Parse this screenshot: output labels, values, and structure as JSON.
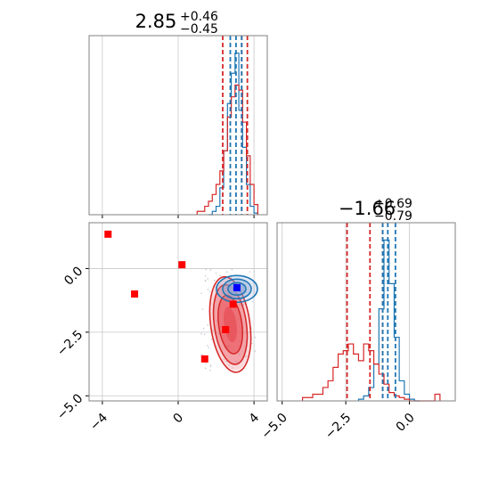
{
  "colors": {
    "blue": "#1f77b4",
    "red": "#d62728",
    "marker_red": "#ff0000",
    "marker_blue": "#0000ff",
    "fill_red": "#e8525a",
    "frame": "#808080",
    "grid": "#c8c8c8"
  },
  "chart_data": [
    {
      "type": "histogram",
      "panel": "marginal-param-1",
      "title_main": "2.85",
      "title_plus": "+0.46",
      "title_minus": "−0.45",
      "xlim": [
        -4.7,
        4.7
      ],
      "grid": true,
      "quantile_lines": {
        "red": [
          2.35,
          3.35,
          3.65
        ],
        "blue": [
          2.75,
          3.05,
          3.35
        ]
      },
      "series": [
        {
          "color": "blue",
          "bin_edges": [
            1.6,
            1.8,
            2.0,
            2.2,
            2.4,
            2.6,
            2.8,
            3.0,
            3.2,
            3.4,
            3.6,
            3.8,
            4.0,
            4.2
          ],
          "counts": [
            0,
            0.02,
            0.05,
            0.16,
            0.38,
            0.66,
            0.84,
            0.96,
            0.62,
            0.4,
            0.18,
            0.05,
            0.01
          ]
        },
        {
          "color": "red",
          "bin_edges": [
            1.0,
            1.4,
            1.6,
            1.8,
            2.0,
            2.2,
            2.4,
            2.6,
            2.8,
            3.0,
            3.2,
            3.4,
            3.6,
            3.8,
            4.0,
            4.2
          ],
          "counts": [
            0.02,
            0.05,
            0.08,
            0.12,
            0.18,
            0.26,
            0.38,
            0.58,
            0.7,
            0.77,
            0.74,
            0.55,
            0.35,
            0.18,
            0.06
          ]
        }
      ]
    },
    {
      "type": "scatter",
      "panel": "joint-density",
      "xlim": [
        -4.7,
        4.7
      ],
      "ylim": [
        -5.2,
        1.8
      ],
      "x_ticks": [
        "−4",
        "0",
        "4"
      ],
      "y_ticks": [
        "−5.0",
        "−2.5",
        "0.0"
      ],
      "grid": true,
      "points_red": [
        [
          -3.7,
          1.35
        ],
        [
          -2.3,
          -1.0
        ],
        [
          0.2,
          0.15
        ],
        [
          2.9,
          -1.4
        ],
        [
          2.5,
          -2.4
        ],
        [
          1.4,
          -3.55
        ]
      ],
      "points_blue": [
        [
          3.1,
          -0.75
        ]
      ],
      "contours_red_center": [
        2.75,
        -2.2
      ],
      "contours_blue_center": [
        3.1,
        -0.8
      ]
    },
    {
      "type": "histogram",
      "panel": "marginal-param-2",
      "title_main": "−1.66",
      "title_plus": "+0.69",
      "title_minus": "−0.79",
      "xlim": [
        -5.2,
        1.8
      ],
      "x_ticks": [
        "−5.0",
        "−2.5",
        "0.0"
      ],
      "grid": true,
      "quantile_lines": {
        "red": [
          -2.45,
          -1.55,
          -1.05
        ],
        "blue": [
          -1.05,
          -0.85,
          -0.55
        ]
      },
      "series": [
        {
          "color": "blue",
          "bin_edges": [
            -2.0,
            -1.8,
            -1.6,
            -1.4,
            -1.2,
            -1.0,
            -0.8,
            -0.6,
            -0.4,
            -0.2,
            0.0,
            0.2,
            0.4
          ],
          "counts": [
            0.01,
            0.03,
            0.08,
            0.22,
            0.55,
            0.96,
            0.7,
            0.38,
            0.12,
            0.04,
            0.01,
            0.0
          ]
        },
        {
          "color": "red",
          "bin_edges": [
            -4.2,
            -3.8,
            -3.4,
            -3.2,
            -3.0,
            -2.8,
            -2.6,
            -2.4,
            -2.2,
            -2.0,
            -1.8,
            -1.6,
            -1.4,
            -1.2,
            -1.0,
            -0.8,
            -0.6,
            -0.4,
            -0.2,
            0.0,
            1.0,
            1.2
          ],
          "counts": [
            0.02,
            0.04,
            0.08,
            0.12,
            0.2,
            0.28,
            0.3,
            0.34,
            0.28,
            0.24,
            0.34,
            0.3,
            0.22,
            0.16,
            0.1,
            0.05,
            0.03,
            0.02,
            0.01,
            0.0,
            0.04
          ]
        }
      ]
    }
  ]
}
